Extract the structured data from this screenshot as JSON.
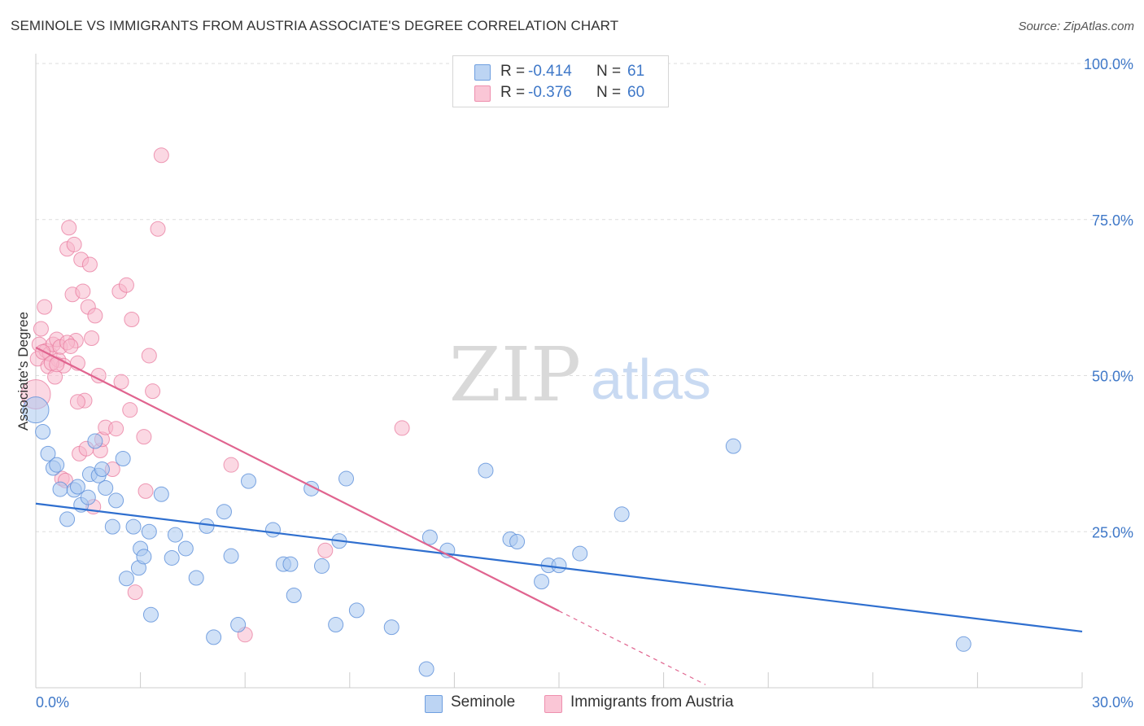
{
  "header": {
    "title": "SEMINOLE VS IMMIGRANTS FROM AUSTRIA ASSOCIATE'S DEGREE CORRELATION CHART",
    "source": "Source: ZipAtlas.com"
  },
  "watermark": {
    "zip": "ZIP",
    "atlas": "atlas"
  },
  "legend": {
    "r_label": "R =",
    "n_label": "N =",
    "rows": [
      {
        "r": "-0.414",
        "n": "61",
        "fill": "#bcd4f3",
        "stroke": "#6f9fe0"
      },
      {
        "r": "-0.376",
        "n": "60",
        "fill": "#fac6d6",
        "stroke": "#ee8fae"
      }
    ]
  },
  "colors": {
    "seminole_fill": "#a9c8f0",
    "seminole_stroke": "#5b8fd9",
    "seminole_line": "#2f6fcf",
    "austria_fill": "#f7b8cc",
    "austria_stroke": "#e8799e",
    "austria_line": "#e0648f",
    "axis_text": "#3f78c8"
  },
  "chart_data": {
    "type": "scatter",
    "title": "SEMINOLE VS IMMIGRANTS FROM AUSTRIA ASSOCIATE'S DEGREE CORRELATION CHART",
    "xlabel": "",
    "ylabel": "Associate's Degree",
    "xlim": [
      0,
      30
    ],
    "ylim": [
      0,
      100
    ],
    "x_ticks": [
      0,
      3,
      6,
      9,
      12,
      15,
      18,
      21,
      24,
      27,
      30
    ],
    "x_tick_labels": [
      "0.0%",
      "30.0%"
    ],
    "y_ticks": [
      25,
      50,
      75,
      100
    ],
    "y_tick_labels": [
      "25.0%",
      "50.0%",
      "75.0%",
      "100.0%"
    ],
    "grid": true,
    "legend": [
      "Seminole",
      "Immigrants from Austria"
    ],
    "series": [
      {
        "name": "Seminole",
        "r": -0.414,
        "n": 61,
        "trend": {
          "x0": 0,
          "y0": 29.5,
          "x1": 30,
          "y1": 9.0
        },
        "points": [
          [
            0.0,
            44.5
          ],
          [
            0.2,
            41.0
          ],
          [
            0.35,
            37.5
          ],
          [
            0.5,
            35.2
          ],
          [
            0.6,
            35.7
          ],
          [
            0.7,
            31.8
          ],
          [
            0.9,
            27.0
          ],
          [
            1.1,
            31.7
          ],
          [
            1.2,
            32.2
          ],
          [
            1.3,
            29.3
          ],
          [
            1.5,
            30.5
          ],
          [
            1.55,
            34.2
          ],
          [
            1.7,
            39.5
          ],
          [
            1.8,
            34.0
          ],
          [
            1.9,
            35.0
          ],
          [
            2.0,
            32.0
          ],
          [
            2.2,
            25.8
          ],
          [
            2.3,
            30.0
          ],
          [
            2.5,
            36.7
          ],
          [
            2.6,
            17.5
          ],
          [
            2.8,
            25.8
          ],
          [
            2.95,
            19.2
          ],
          [
            3.0,
            22.3
          ],
          [
            3.1,
            21.0
          ],
          [
            3.25,
            25.0
          ],
          [
            3.3,
            11.7
          ],
          [
            3.6,
            31.0
          ],
          [
            3.9,
            20.8
          ],
          [
            4.0,
            24.5
          ],
          [
            4.3,
            22.3
          ],
          [
            4.6,
            17.6
          ],
          [
            4.9,
            25.9
          ],
          [
            5.1,
            8.1
          ],
          [
            5.4,
            28.2
          ],
          [
            5.6,
            21.1
          ],
          [
            5.8,
            10.1
          ],
          [
            6.1,
            33.1
          ],
          [
            6.8,
            25.3
          ],
          [
            7.1,
            19.8
          ],
          [
            7.3,
            19.8
          ],
          [
            7.4,
            14.8
          ],
          [
            7.9,
            31.9
          ],
          [
            8.2,
            19.5
          ],
          [
            8.6,
            10.1
          ],
          [
            8.7,
            23.5
          ],
          [
            8.9,
            33.5
          ],
          [
            9.2,
            12.4
          ],
          [
            10.2,
            9.7
          ],
          [
            11.2,
            3.0
          ],
          [
            11.3,
            24.1
          ],
          [
            11.8,
            22.0
          ],
          [
            12.9,
            34.8
          ],
          [
            13.6,
            23.8
          ],
          [
            13.8,
            23.4
          ],
          [
            14.5,
            17.0
          ],
          [
            14.7,
            19.6
          ],
          [
            15.0,
            19.6
          ],
          [
            15.6,
            21.5
          ],
          [
            16.8,
            27.8
          ],
          [
            20.0,
            38.7
          ],
          [
            26.6,
            7.0
          ]
        ]
      },
      {
        "name": "Immigrants from Austria",
        "r": -0.376,
        "n": 60,
        "trend": {
          "x0": 0,
          "y0": 54.5,
          "x1": 15,
          "y1": 12.3
        },
        "trend_dashed": {
          "x0": 15,
          "y0": 12.3,
          "x1": 19.2,
          "y1": 0.5
        },
        "points": [
          [
            0.0,
            47.0
          ],
          [
            0.05,
            52.7
          ],
          [
            0.1,
            55.0
          ],
          [
            0.15,
            57.5
          ],
          [
            0.25,
            61.0
          ],
          [
            0.3,
            54.0
          ],
          [
            0.35,
            51.5
          ],
          [
            0.4,
            53.5
          ],
          [
            0.5,
            55.0
          ],
          [
            0.55,
            49.8
          ],
          [
            0.6,
            55.8
          ],
          [
            0.65,
            52.5
          ],
          [
            0.7,
            54.6
          ],
          [
            0.75,
            33.5
          ],
          [
            0.8,
            51.6
          ],
          [
            0.85,
            33.2
          ],
          [
            0.9,
            70.3
          ],
          [
            0.95,
            73.7
          ],
          [
            1.05,
            63.0
          ],
          [
            1.1,
            71.0
          ],
          [
            1.15,
            55.6
          ],
          [
            1.2,
            52.0
          ],
          [
            1.25,
            37.5
          ],
          [
            1.3,
            68.6
          ],
          [
            1.35,
            63.5
          ],
          [
            1.4,
            46.0
          ],
          [
            1.45,
            38.3
          ],
          [
            1.5,
            61.0
          ],
          [
            1.55,
            67.8
          ],
          [
            1.6,
            56.0
          ],
          [
            1.65,
            29.0
          ],
          [
            1.7,
            59.6
          ],
          [
            1.8,
            50.0
          ],
          [
            1.85,
            38.0
          ],
          [
            1.9,
            39.8
          ],
          [
            2.0,
            41.7
          ],
          [
            2.2,
            35.0
          ],
          [
            2.3,
            41.5
          ],
          [
            2.4,
            63.5
          ],
          [
            2.45,
            49.0
          ],
          [
            2.6,
            64.5
          ],
          [
            2.7,
            44.5
          ],
          [
            2.75,
            59.0
          ],
          [
            2.85,
            15.3
          ],
          [
            3.1,
            40.2
          ],
          [
            3.15,
            31.5
          ],
          [
            3.25,
            53.2
          ],
          [
            3.35,
            47.5
          ],
          [
            3.5,
            73.5
          ],
          [
            3.6,
            85.3
          ],
          [
            5.6,
            35.7
          ],
          [
            6.0,
            8.5
          ],
          [
            8.3,
            22.0
          ],
          [
            10.5,
            41.6
          ],
          [
            0.2,
            53.8
          ],
          [
            0.45,
            52.0
          ],
          [
            0.9,
            55.3
          ],
          [
            1.0,
            54.7
          ],
          [
            0.6,
            51.8
          ],
          [
            1.2,
            45.8
          ]
        ]
      }
    ]
  },
  "bottom_legend": [
    {
      "label": "Seminole"
    },
    {
      "label": "Immigrants from Austria"
    }
  ]
}
